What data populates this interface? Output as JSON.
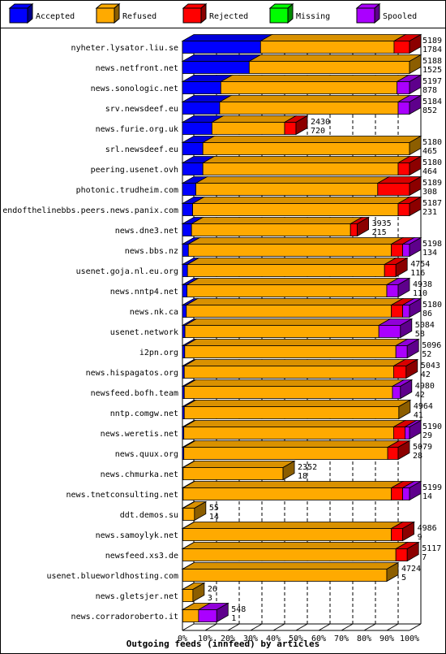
{
  "chart_data": {
    "type": "bar",
    "orientation": "horizontal",
    "stacked": true,
    "title": "Outgoing feeds (innfeed) by articles",
    "xlabel": "",
    "ylabel": "",
    "xlim": [
      0,
      100
    ],
    "x_unit": "%",
    "xticks": [
      "0%",
      "10%",
      "20%",
      "30%",
      "40%",
      "50%",
      "60%",
      "70%",
      "80%",
      "90%",
      "100%"
    ],
    "grid": true,
    "legend_position": "top",
    "series": [
      {
        "name": "Accepted",
        "color": "#0000ff"
      },
      {
        "name": "Refused",
        "color": "#ffaa00"
      },
      {
        "name": "Rejected",
        "color": "#ff0000"
      },
      {
        "name": "Missing",
        "color": "#00ff00"
      },
      {
        "name": "Spooled",
        "color": "#aa00ff"
      }
    ],
    "rows": [
      {
        "label": "nyheter.lysator.liu.se",
        "offered": "5189",
        "accepted": "1784",
        "pct": [
          34.4,
          58.8,
          6.8,
          0,
          0
        ]
      },
      {
        "label": "news.netfront.net",
        "offered": "5188",
        "accepted": "1525",
        "pct": [
          29.4,
          70.6,
          0,
          0,
          0
        ]
      },
      {
        "label": "news.sonologic.net",
        "offered": "5197",
        "accepted": "878",
        "pct": [
          16.9,
          77.6,
          0,
          0,
          5.5
        ]
      },
      {
        "label": "srv.newsdeef.eu",
        "offered": "5184",
        "accepted": "852",
        "pct": [
          16.4,
          78.6,
          0,
          0,
          5.0
        ]
      },
      {
        "label": "news.furie.org.uk",
        "offered": "2430",
        "accepted": "720",
        "pct": [
          13.0,
          32.0,
          5.0,
          0,
          0
        ]
      },
      {
        "label": "srl.newsdeef.eu",
        "offered": "5180",
        "accepted": "465",
        "pct": [
          9.0,
          91.0,
          0,
          0,
          0
        ]
      },
      {
        "label": "peering.usenet.ovh",
        "offered": "5180",
        "accepted": "464",
        "pct": [
          9.0,
          86.0,
          5.0,
          0,
          0
        ]
      },
      {
        "label": "photonic.trudheim.com",
        "offered": "5189",
        "accepted": "308",
        "pct": [
          5.9,
          80.1,
          14.0,
          0,
          0
        ]
      },
      {
        "label": "endofthelinebbs.peers.news.panix.com",
        "offered": "5187",
        "accepted": "231",
        "pct": [
          4.5,
          90.5,
          5.0,
          0,
          0
        ]
      },
      {
        "label": "news.dne3.net",
        "offered": "3935",
        "accepted": "215",
        "pct": [
          4.0,
          70.0,
          3.0,
          0,
          0
        ]
      },
      {
        "label": "news.bbs.nz",
        "offered": "5198",
        "accepted": "134",
        "pct": [
          2.6,
          89.4,
          5.0,
          0,
          3.0
        ]
      },
      {
        "label": "usenet.goja.nl.eu.org",
        "offered": "4754",
        "accepted": "116",
        "pct": [
          2.2,
          86.8,
          5.0,
          0,
          0
        ]
      },
      {
        "label": "news.nntp4.net",
        "offered": "4938",
        "accepted": "110",
        "pct": [
          2.0,
          88.0,
          0,
          0,
          5.0
        ]
      },
      {
        "label": "news.nk.ca",
        "offered": "5180",
        "accepted": "86",
        "pct": [
          1.7,
          90.3,
          5.0,
          0,
          3.0
        ]
      },
      {
        "label": "usenet.network",
        "offered": "5084",
        "accepted": "58",
        "pct": [
          1.1,
          85.4,
          0,
          0,
          9.5
        ]
      },
      {
        "label": "i2pn.org",
        "offered": "5096",
        "accepted": "52",
        "pct": [
          1.0,
          93.0,
          0,
          0,
          5.0
        ]
      },
      {
        "label": "news.hispagatos.org",
        "offered": "5043",
        "accepted": "42",
        "pct": [
          0.8,
          92.2,
          5.5,
          0,
          0
        ]
      },
      {
        "label": "newsfeed.bofh.team",
        "offered": "4980",
        "accepted": "42",
        "pct": [
          0.8,
          91.7,
          0,
          0,
          3.5
        ]
      },
      {
        "label": "nntp.comgw.net",
        "offered": "4964",
        "accepted": "41",
        "pct": [
          0.8,
          94.5,
          0,
          0,
          0
        ]
      },
      {
        "label": "news.weretis.net",
        "offered": "5190",
        "accepted": "29",
        "pct": [
          0.6,
          92.4,
          5.0,
          0,
          2.0
        ]
      },
      {
        "label": "news.quux.org",
        "offered": "5079",
        "accepted": "28",
        "pct": [
          0.6,
          89.8,
          4.6,
          0,
          0
        ]
      },
      {
        "label": "news.chmurka.net",
        "offered": "2352",
        "accepted": "18",
        "pct": [
          0.3,
          44.0,
          0,
          0,
          0
        ]
      },
      {
        "label": "news.tnetconsulting.net",
        "offered": "5199",
        "accepted": "14",
        "pct": [
          0.3,
          91.7,
          5.0,
          0,
          3.0
        ]
      },
      {
        "label": "ddt.demos.su",
        "offered": "55",
        "accepted": "14",
        "pct": [
          0.3,
          5.0,
          0,
          0,
          0
        ]
      },
      {
        "label": "news.samoylyk.net",
        "offered": "4986",
        "accepted": "9",
        "pct": [
          0.2,
          91.8,
          5.0,
          0,
          0
        ]
      },
      {
        "label": "newsfeed.xs3.de",
        "offered": "5117",
        "accepted": "7",
        "pct": [
          0.1,
          93.9,
          5.0,
          0,
          0
        ]
      },
      {
        "label": "usenet.blueworldhosting.com",
        "offered": "4724",
        "accepted": "5",
        "pct": [
          0.1,
          89.9,
          0,
          0,
          0
        ]
      },
      {
        "label": "news.gletsjer.net",
        "offered": "26",
        "accepted": "3",
        "pct": [
          0.1,
          4.5,
          0,
          0,
          0
        ]
      },
      {
        "label": "news.corradoroberto.it",
        "offered": "548",
        "accepted": "1",
        "pct": [
          0.1,
          7.0,
          0,
          0,
          8.0
        ]
      }
    ]
  }
}
